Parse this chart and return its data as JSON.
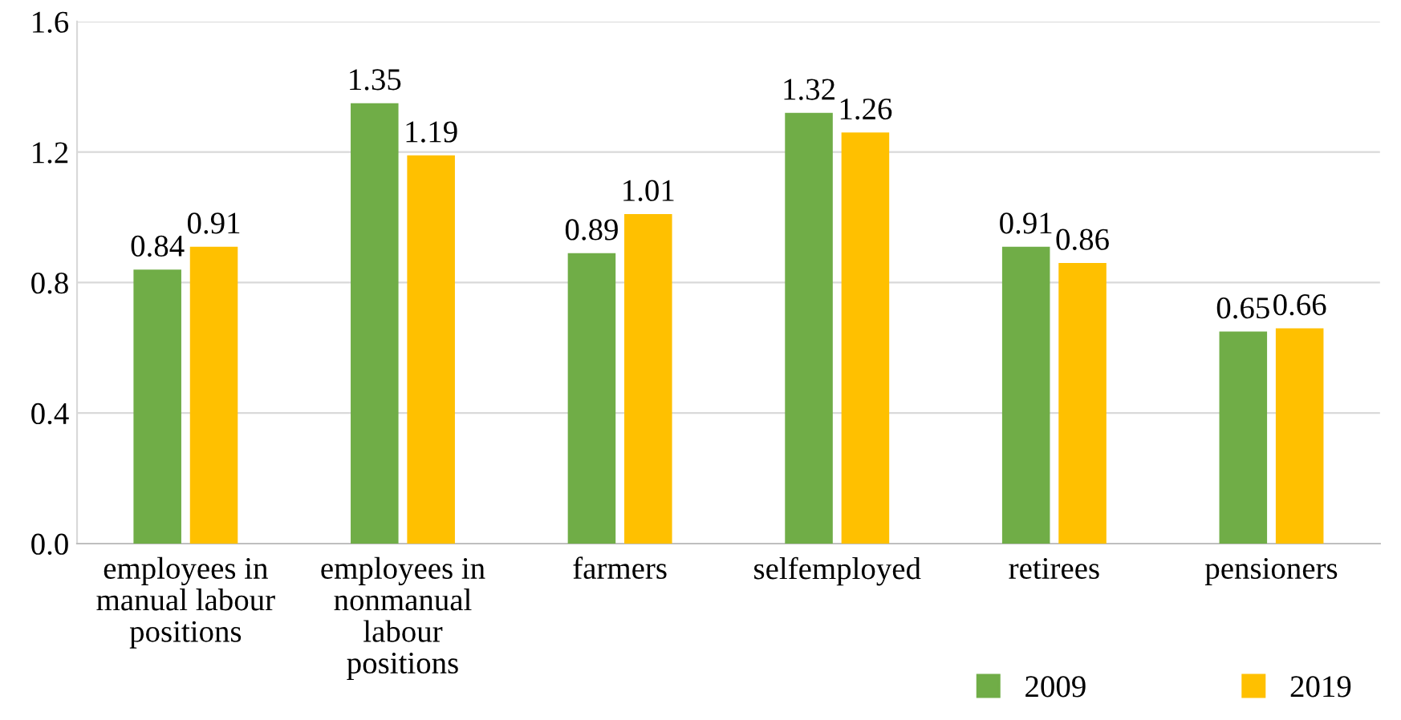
{
  "chart_data": {
    "type": "bar",
    "categories": [
      "employees in\nmanual labour\npositions",
      "employees in\nnonmanual\nlabour\npositions",
      "farmers",
      "selfemployed",
      "retirees",
      "pensioners"
    ],
    "series": [
      {
        "name": "2009",
        "color": "#70ad47",
        "values": [
          0.84,
          1.35,
          0.89,
          1.32,
          0.91,
          0.65
        ]
      },
      {
        "name": "2019",
        "color": "#ffc000",
        "values": [
          0.91,
          1.19,
          1.01,
          1.26,
          0.86,
          0.66
        ]
      }
    ],
    "ylim": [
      0,
      1.6
    ],
    "yticks": [
      {
        "value": 0,
        "label": "0.0"
      },
      0.4,
      0.8,
      1.2,
      1.6
    ],
    "grid": "y",
    "data_labels": true,
    "legend": "bottom right"
  }
}
